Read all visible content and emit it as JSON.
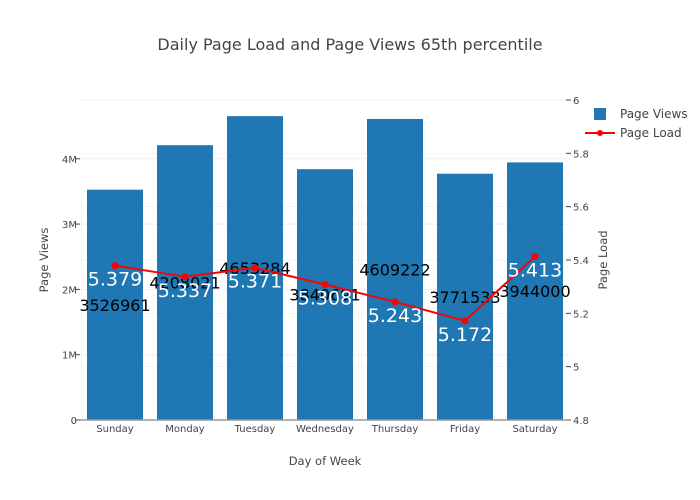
{
  "chart_data": {
    "type": "bar",
    "title": "Daily Page Load and Page Views 65th percentile",
    "xlabel": "Day of Week",
    "ylabel": "Page Views",
    "y2label": "Page Load",
    "categories": [
      "Sunday",
      "Monday",
      "Tuesday",
      "Wednesday",
      "Thursday",
      "Friday",
      "Saturday"
    ],
    "ylim": [
      0,
      4900000
    ],
    "y2lim": [
      4.8,
      6
    ],
    "yticks": [
      {
        "v": 0,
        "label": "0"
      },
      {
        "v": 1000000,
        "label": "1M"
      },
      {
        "v": 2000000,
        "label": "2M"
      },
      {
        "v": 3000000,
        "label": "3M"
      },
      {
        "v": 4000000,
        "label": "4M"
      }
    ],
    "y2ticks": [
      {
        "v": 4.8,
        "label": "4.8"
      },
      {
        "v": 5,
        "label": "5"
      },
      {
        "v": 5.2,
        "label": "5.2"
      },
      {
        "v": 5.4,
        "label": "5.4"
      },
      {
        "v": 5.6,
        "label": "5.6"
      },
      {
        "v": 5.8,
        "label": "5.8"
      },
      {
        "v": 6,
        "label": "6"
      }
    ],
    "grid": true,
    "legend_position": "top-right",
    "series": [
      {
        "name": "Page Views",
        "type": "bar",
        "axis": "left",
        "color": "#1f77b4",
        "values": [
          3526961,
          4208021,
          4653284,
          3840691,
          4609222,
          3771533,
          3944000
        ],
        "labels": [
          "3526961",
          "4208021",
          "4653284",
          "3840691",
          "4609222",
          "3771533",
          "3944000"
        ]
      },
      {
        "name": "Page Load",
        "type": "line",
        "axis": "right",
        "color": "#ff0000",
        "values": [
          5.379,
          5.337,
          5.371,
          5.308,
          5.243,
          5.172,
          5.413
        ],
        "labels": [
          "5.379",
          "5.337",
          "5.371",
          "5.308",
          "5.243",
          "5.172",
          "5.413"
        ]
      }
    ]
  }
}
